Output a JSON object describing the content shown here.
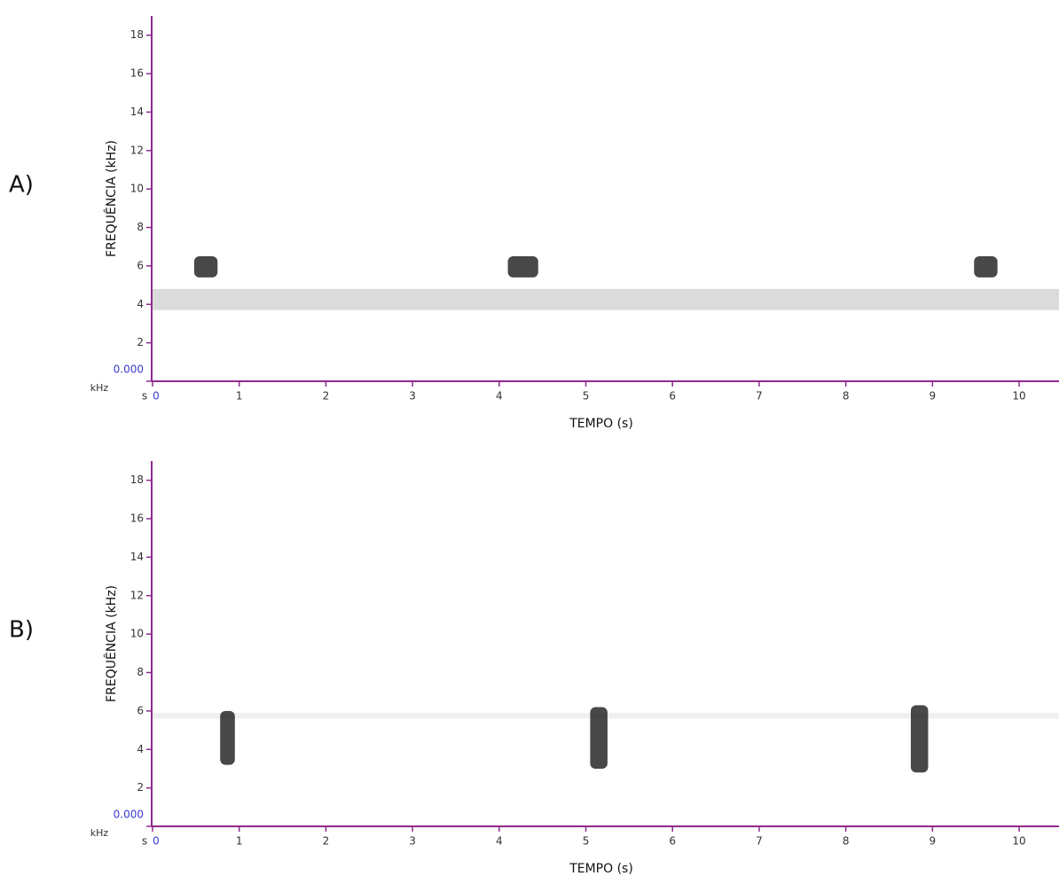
{
  "chart_data": [
    {
      "type": "spectrogram",
      "panel_label": "A)",
      "ylabel": "FREQUÊNCIA (kHz)",
      "xlabel": "TEMPO (s)",
      "y_unit": "kHz",
      "x_unit": "s",
      "xlim": [
        0,
        10.46
      ],
      "ylim": [
        0,
        19
      ],
      "xticks": [
        0,
        1,
        2,
        3,
        4,
        5,
        6,
        7,
        8,
        9,
        10
      ],
      "yticks": [
        {
          "value": 0,
          "label": "0.000"
        },
        2,
        4,
        6,
        8,
        10,
        12,
        14,
        16,
        18
      ],
      "noise_band": [
        3.7,
        4.8
      ],
      "calls": [
        {
          "x": [
            0.48,
            0.75
          ],
          "y": [
            5.4,
            6.5
          ]
        },
        {
          "x": [
            4.1,
            4.45
          ],
          "y": [
            5.4,
            6.5
          ]
        },
        {
          "x": [
            9.48,
            9.75
          ],
          "y": [
            5.4,
            6.5
          ]
        }
      ],
      "axis_color": "#8e2a8e",
      "origin_label_color": "#3a3acf"
    },
    {
      "type": "spectrogram",
      "panel_label": "B)",
      "ylabel": "FREQUÊNCIA (kHz)",
      "xlabel": "TEMPO (s)",
      "y_unit": "kHz",
      "x_unit": "s",
      "xlim": [
        0,
        10.46
      ],
      "ylim": [
        0,
        19
      ],
      "xticks": [
        0,
        1,
        2,
        3,
        4,
        5,
        6,
        7,
        8,
        9,
        10
      ],
      "yticks": [
        {
          "value": 0,
          "label": "0.000"
        },
        2,
        4,
        6,
        8,
        10,
        12,
        14,
        16,
        18
      ],
      "noise_band": [
        5.6,
        5.9
      ],
      "calls": [
        {
          "x": [
            0.78,
            0.95
          ],
          "y": [
            3.2,
            6.0
          ]
        },
        {
          "x": [
            5.05,
            5.25
          ],
          "y": [
            3.0,
            6.2
          ]
        },
        {
          "x": [
            8.75,
            8.95
          ],
          "y": [
            2.8,
            6.3
          ]
        }
      ],
      "axis_color": "#8e2a8e",
      "origin_label_color": "#3a3acf"
    }
  ]
}
